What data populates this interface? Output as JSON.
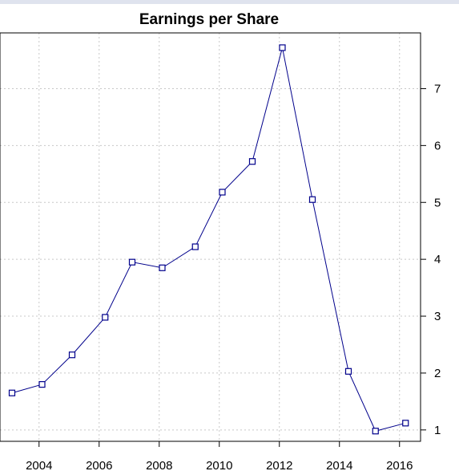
{
  "chart_data": {
    "type": "line",
    "title": "Earnings per Share",
    "xlabel": "",
    "ylabel": "",
    "x": [
      2003.1,
      2004.1,
      2005.1,
      2006.2,
      2007.1,
      2008.1,
      2009.2,
      2010.1,
      2011.1,
      2012.1,
      2013.1,
      2014.3,
      2015.2,
      2016.2
    ],
    "series": [
      {
        "values": [
          1.65,
          1.8,
          2.32,
          2.98,
          3.95,
          3.85,
          4.22,
          5.18,
          5.72,
          7.72,
          5.05,
          2.03,
          0.98,
          1.12
        ]
      }
    ],
    "xlim": [
      2002.7,
      2016.7
    ],
    "ylim": [
      0.8,
      7.98
    ],
    "x_ticks": [
      "2004",
      "2006",
      "2008",
      "2010",
      "2012",
      "2014",
      "2016"
    ],
    "y_ticks": [
      "1",
      "2",
      "3",
      "4",
      "5",
      "6",
      "7"
    ],
    "y_axis_side": "right",
    "grid": true,
    "line_color": "#00008b",
    "marker": "open-square"
  }
}
